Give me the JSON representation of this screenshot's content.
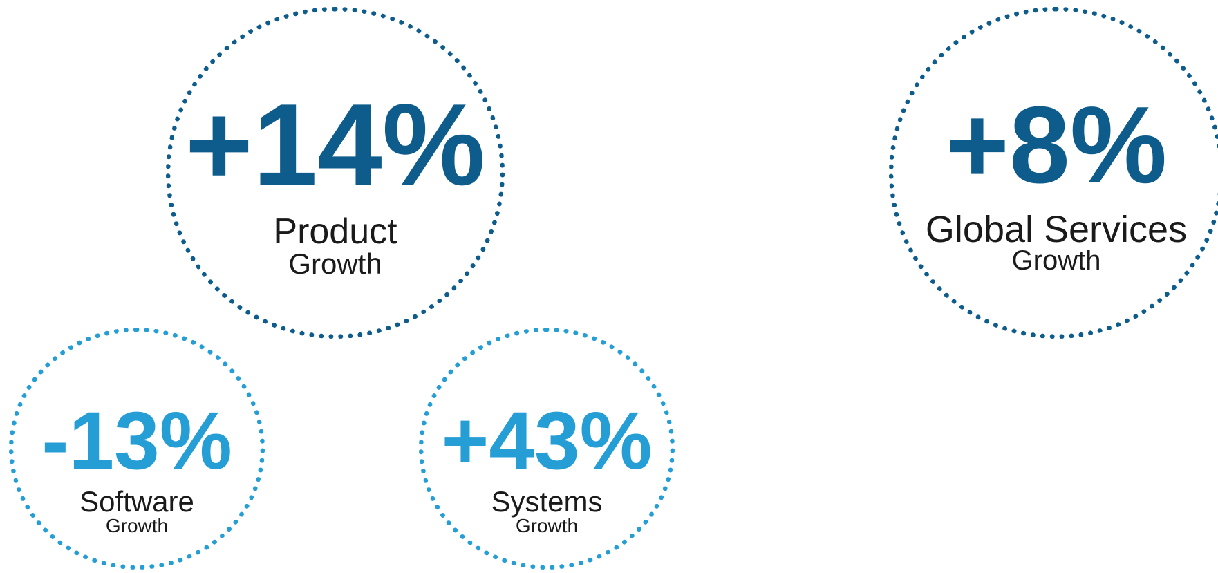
{
  "colors": {
    "dark_blue": "#0e5c8c",
    "light_blue": "#259ed6",
    "text": "#1a1a1a"
  },
  "metrics": [
    {
      "value": "+14%",
      "label": "Product",
      "sub": "Growth",
      "color": "#0e5c8c"
    },
    {
      "value": "+8%",
      "label": "Global Services",
      "sub": "Growth",
      "color": "#0e5c8c"
    },
    {
      "value": "-13%",
      "label": "Software",
      "sub": "Growth",
      "color": "#259ed6"
    },
    {
      "value": "+43%",
      "label": "Systems",
      "sub": "Growth",
      "color": "#259ed6"
    }
  ]
}
